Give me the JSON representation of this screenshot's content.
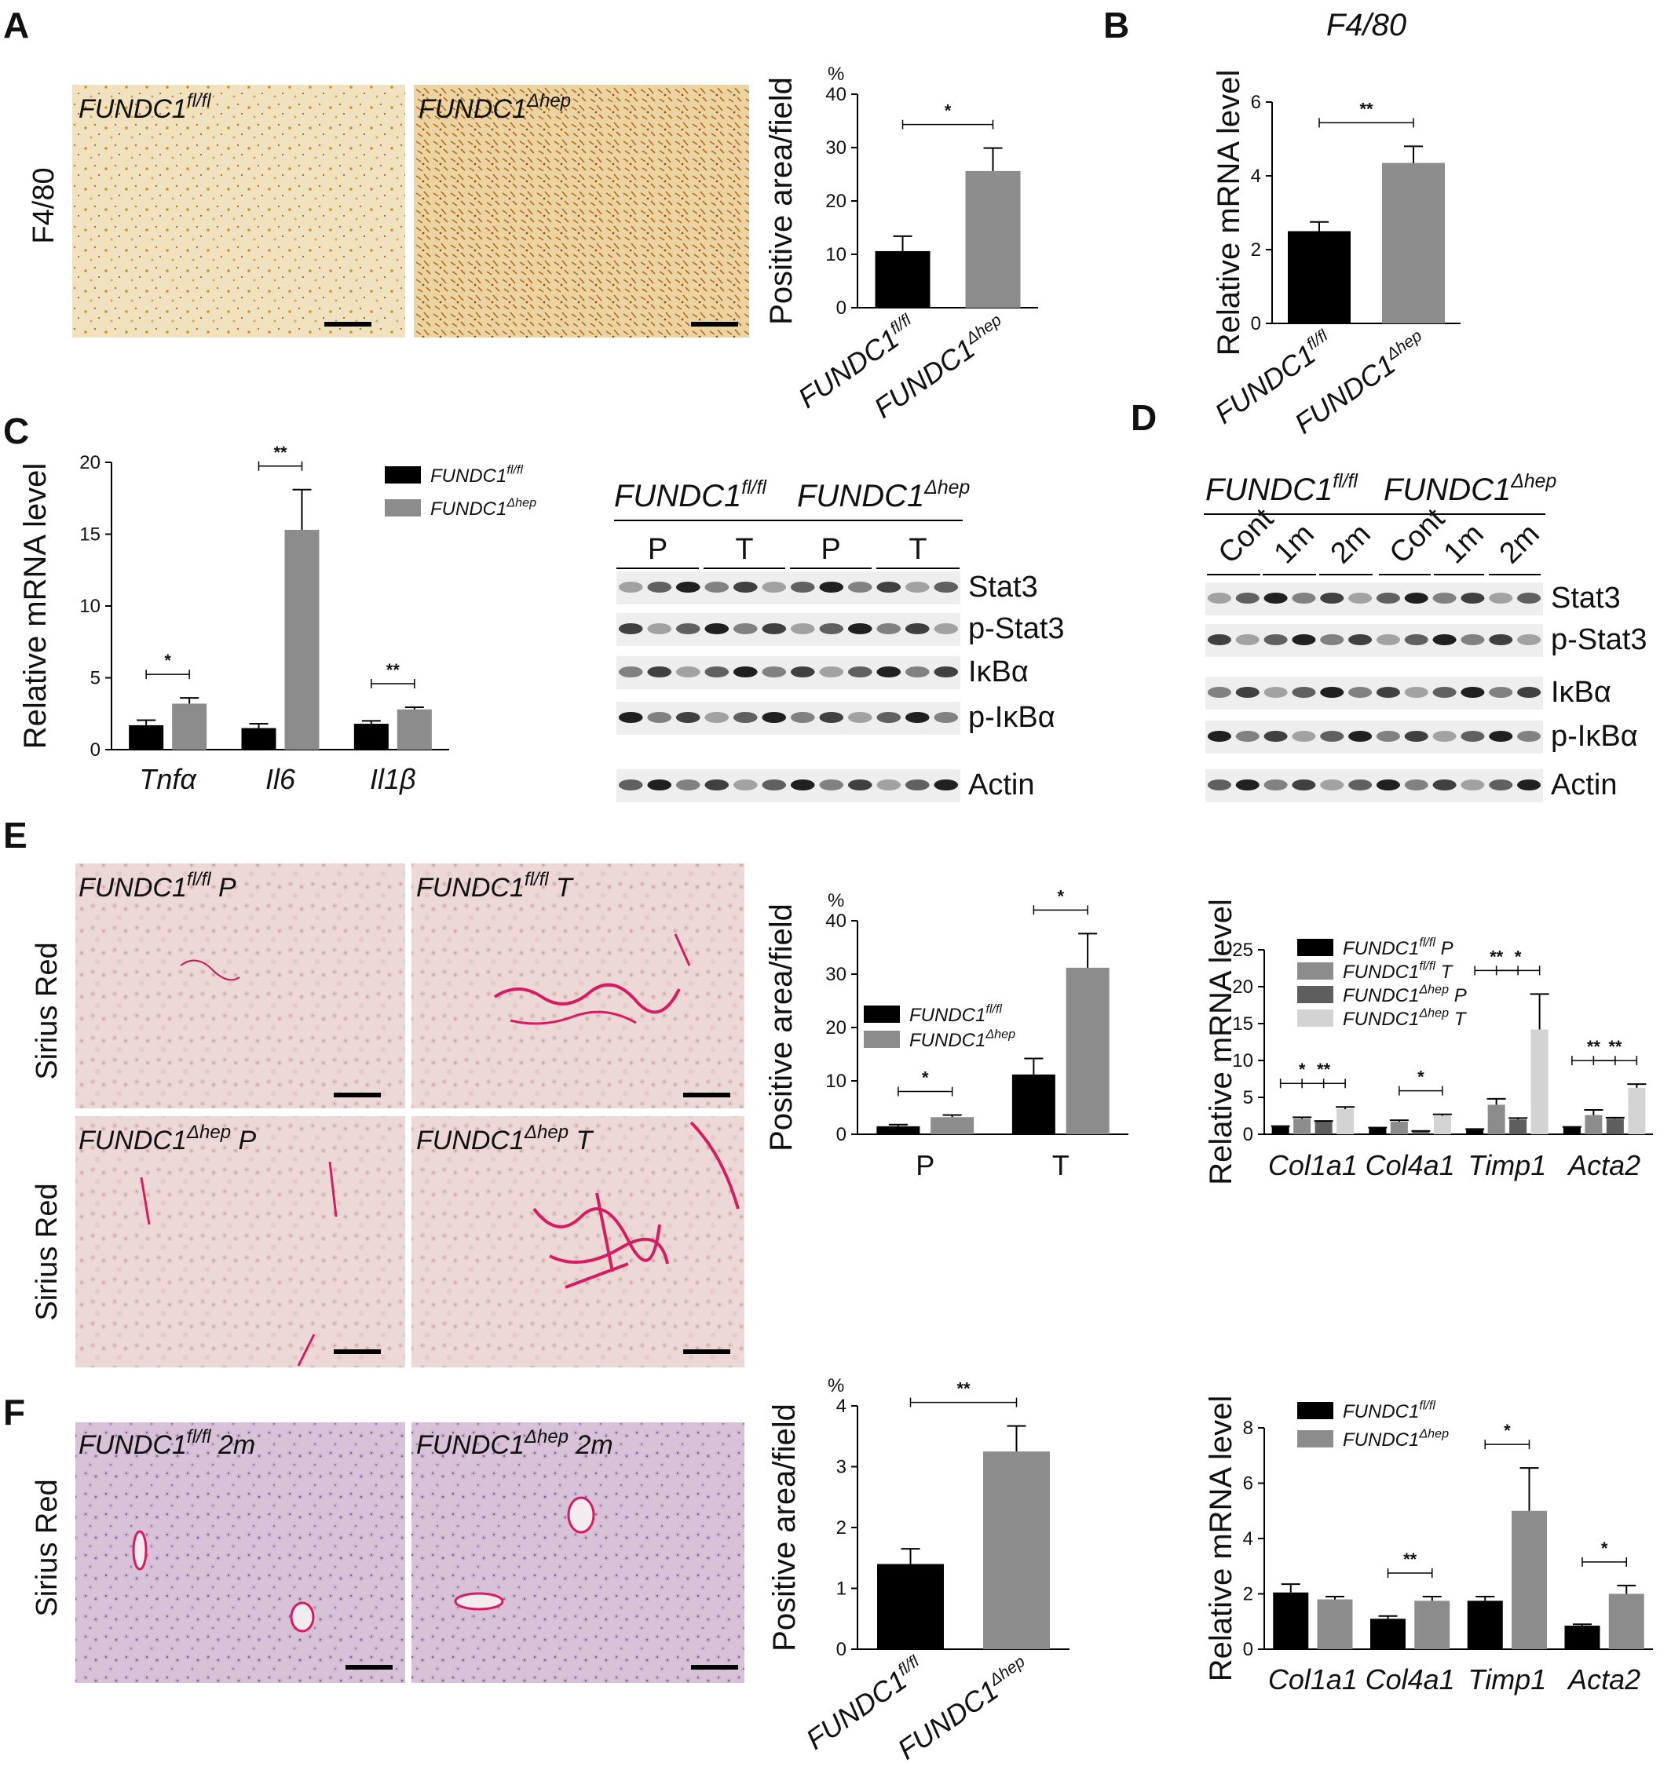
{
  "panels": {
    "A": {
      "letter": "A",
      "row_label": "F4/80",
      "image_labels": [
        {
          "text": "FUNDC1",
          "sup": "fl/fl"
        },
        {
          "text": "FUNDC1",
          "sup": "Δhep"
        }
      ]
    },
    "B": {
      "letter": "B"
    },
    "C": {
      "letter": "C"
    },
    "D": {
      "letter": "D"
    },
    "E": {
      "letter": "E",
      "row_labels": [
        "Sirius Red",
        "Sirius Red"
      ],
      "image_labels": [
        {
          "text": "FUNDC1",
          "sup": "fl/fl",
          "suffix": " P"
        },
        {
          "text": "FUNDC1",
          "sup": "fl/fl",
          "suffix": " T"
        },
        {
          "text": "FUNDC1",
          "sup": "Δhep",
          "suffix": " P"
        },
        {
          "text": "FUNDC1",
          "sup": "Δhep",
          "suffix": " T"
        }
      ]
    },
    "F": {
      "letter": "F",
      "row_label": "Sirius Red",
      "image_labels": [
        {
          "text": "FUNDC1",
          "sup": "fl/fl",
          "suffix": " 2m"
        },
        {
          "text": "FUNDC1",
          "sup": "Δhep",
          "suffix": " 2m"
        }
      ]
    }
  },
  "blots": {
    "C": {
      "groups": [
        {
          "text": "FUNDC1",
          "sup": "fl/fl"
        },
        {
          "text": "FUNDC1",
          "sup": "Δhep"
        }
      ],
      "subgroups": [
        "P",
        "T",
        "P",
        "T"
      ],
      "rows": [
        "Stat3",
        "p-Stat3",
        "IκBα",
        "p-IκBα",
        "Actin"
      ]
    },
    "D": {
      "groups": [
        {
          "text": "FUNDC1",
          "sup": "fl/fl"
        },
        {
          "text": "FUNDC1",
          "sup": "Δhep"
        }
      ],
      "subgroups": [
        "Cont",
        "1m",
        "2m",
        "Cont",
        "1m",
        "2m"
      ],
      "rows": [
        "Stat3",
        "p-Stat3",
        "IκBα",
        "p-IκBα",
        "Actin"
      ]
    }
  },
  "chart_data": [
    {
      "id": "A-bar",
      "type": "bar",
      "title": "",
      "ylabel": "Positive area/field",
      "yunit": "%",
      "ylim": [
        0,
        40
      ],
      "yticks": [
        0,
        10,
        20,
        30,
        40
      ],
      "categories": [
        {
          "text": "FUNDC1",
          "sup": "fl/fl"
        },
        {
          "text": "FUNDC1",
          "sup": "Δhep"
        }
      ],
      "values": [
        10.6,
        25.6
      ],
      "errors": [
        2.8,
        4.3
      ],
      "colors": [
        "#000000",
        "#8c8c8c"
      ],
      "significance": [
        {
          "from": 0,
          "to": 1,
          "label": "*"
        }
      ]
    },
    {
      "id": "B-bar",
      "type": "bar",
      "title": "F4/80",
      "ylabel": "Relative mRNA level",
      "ylim": [
        0,
        6
      ],
      "yticks": [
        0,
        2,
        4,
        6
      ],
      "categories": [
        {
          "text": "FUNDC1",
          "sup": "fl/fl"
        },
        {
          "text": "FUNDC1",
          "sup": "Δhep"
        }
      ],
      "values": [
        2.5,
        4.35
      ],
      "errors": [
        0.25,
        0.45
      ],
      "colors": [
        "#000000",
        "#8c8c8c"
      ],
      "significance": [
        {
          "from": 0,
          "to": 1,
          "label": "**"
        }
      ]
    },
    {
      "id": "C-bar",
      "type": "bar",
      "ylabel": "Relative mRNA level",
      "ylim": [
        0,
        20
      ],
      "yticks": [
        0,
        5,
        10,
        15,
        20
      ],
      "categories": [
        "Tnfα",
        "Il6",
        "Il1β"
      ],
      "series": [
        {
          "name": {
            "text": "FUNDC1",
            "sup": "fl/fl"
          },
          "color": "#000000",
          "values": [
            1.7,
            1.5,
            1.8
          ],
          "errors": [
            0.35,
            0.3,
            0.2
          ]
        },
        {
          "name": {
            "text": "FUNDC1",
            "sup": "Δhep"
          },
          "color": "#8c8c8c",
          "values": [
            3.2,
            15.3,
            2.8
          ],
          "errors": [
            0.4,
            2.8,
            0.15
          ]
        }
      ],
      "significance": [
        {
          "cat": 0,
          "label": "*"
        },
        {
          "cat": 1,
          "label": "**"
        },
        {
          "cat": 2,
          "label": "**"
        }
      ]
    },
    {
      "id": "E-bar",
      "type": "bar",
      "ylabel": "Positive area/field",
      "yunit": "%",
      "ylim": [
        0,
        40
      ],
      "yticks": [
        0,
        10,
        20,
        30,
        40
      ],
      "categories": [
        "P",
        "T"
      ],
      "series": [
        {
          "name": {
            "text": "FUNDC1",
            "sup": "fl/fl"
          },
          "color": "#000000",
          "values": [
            1.5,
            11.2
          ],
          "errors": [
            0.3,
            3.0
          ]
        },
        {
          "name": {
            "text": "FUNDC1",
            "sup": "Δhep"
          },
          "color": "#8c8c8c",
          "values": [
            3.2,
            31.2
          ],
          "errors": [
            0.4,
            6.4
          ]
        }
      ],
      "significance": [
        {
          "cat": 0,
          "label": "*"
        },
        {
          "cat": 1,
          "label": "*"
        }
      ]
    },
    {
      "id": "E-mrna",
      "type": "bar",
      "ylabel": "Relative mRNA level",
      "ylim": [
        0,
        25
      ],
      "yticks": [
        0,
        5,
        10,
        15,
        20,
        25
      ],
      "categories": [
        "Col1a1",
        "Col4a1",
        "Timp1",
        "Acta2"
      ],
      "series": [
        {
          "name": {
            "text": "FUNDC1",
            "sup": "fl/fl",
            "suffix": " P"
          },
          "color": "#000000",
          "values": [
            1.0,
            0.8,
            0.6,
            0.9
          ],
          "errors": [
            0.1,
            0.1,
            0.1,
            0.1
          ]
        },
        {
          "name": {
            "text": "FUNDC1",
            "sup": "fl/fl",
            "suffix": " T"
          },
          "color": "#8c8c8c",
          "values": [
            2.1,
            1.7,
            4.0,
            2.6
          ],
          "errors": [
            0.2,
            0.2,
            0.8,
            0.7
          ]
        },
        {
          "name": {
            "text": "FUNDC1",
            "sup": "Δhep",
            "suffix": " P"
          },
          "color": "#5e5e5e",
          "values": [
            1.7,
            0.4,
            2.0,
            2.1
          ],
          "errors": [
            0.1,
            0.05,
            0.2,
            0.15
          ]
        },
        {
          "name": {
            "text": "FUNDC1",
            "sup": "Δhep",
            "suffix": " T"
          },
          "color": "#d3d3d3",
          "values": [
            3.4,
            2.5,
            14.2,
            6.3
          ],
          "errors": [
            0.3,
            0.2,
            4.8,
            0.5
          ]
        }
      ],
      "significance": [
        {
          "from_series": 0,
          "to_series": 2,
          "cat": 0,
          "label": "*",
          "level": 0
        },
        {
          "from_series": 1,
          "to_series": 3,
          "cat": 0,
          "label": "**",
          "level": 1
        },
        {
          "from_series": 1,
          "to_series": 3,
          "cat": 1,
          "label": "*",
          "level": 0
        },
        {
          "from_series": 0,
          "to_series": 2,
          "cat": 2,
          "label": "**",
          "level": 0
        },
        {
          "from_series": 1,
          "to_series": 3,
          "cat": 2,
          "label": "*",
          "level": 1
        },
        {
          "from_series": 0,
          "to_series": 2,
          "cat": 3,
          "label": "**",
          "level": 0
        },
        {
          "from_series": 1,
          "to_series": 3,
          "cat": 3,
          "label": "**",
          "level": 1
        }
      ]
    },
    {
      "id": "F-bar",
      "type": "bar",
      "ylabel": "Positive area/field",
      "yunit": "%",
      "ylim": [
        0,
        4
      ],
      "yticks": [
        0,
        1,
        2,
        3,
        4
      ],
      "categories": [
        {
          "text": "FUNDC1",
          "sup": "fl/fl"
        },
        {
          "text": "FUNDC1",
          "sup": "Δhep"
        }
      ],
      "values": [
        1.4,
        3.25
      ],
      "errors": [
        0.25,
        0.42
      ],
      "colors": [
        "#000000",
        "#8c8c8c"
      ],
      "significance": [
        {
          "from": 0,
          "to": 1,
          "label": "**"
        }
      ]
    },
    {
      "id": "F-mrna",
      "type": "bar",
      "ylabel": "Relative mRNA level",
      "ylim": [
        0,
        8
      ],
      "yticks": [
        0,
        2,
        4,
        6,
        8
      ],
      "categories": [
        "Col1a1",
        "Col4a1",
        "Timp1",
        "Acta2"
      ],
      "series": [
        {
          "name": {
            "text": "FUNDC1",
            "sup": "fl/fl"
          },
          "color": "#000000",
          "values": [
            2.05,
            1.1,
            1.75,
            0.85
          ],
          "errors": [
            0.3,
            0.1,
            0.15,
            0.05
          ]
        },
        {
          "name": {
            "text": "FUNDC1",
            "sup": "Δhep"
          },
          "color": "#8c8c8c",
          "values": [
            1.8,
            1.75,
            5.0,
            2.0
          ],
          "errors": [
            0.1,
            0.15,
            1.55,
            0.3
          ]
        }
      ],
      "significance": [
        {
          "cat": 1,
          "label": "**"
        },
        {
          "cat": 2,
          "label": "*"
        },
        {
          "cat": 3,
          "label": "*"
        }
      ]
    }
  ]
}
